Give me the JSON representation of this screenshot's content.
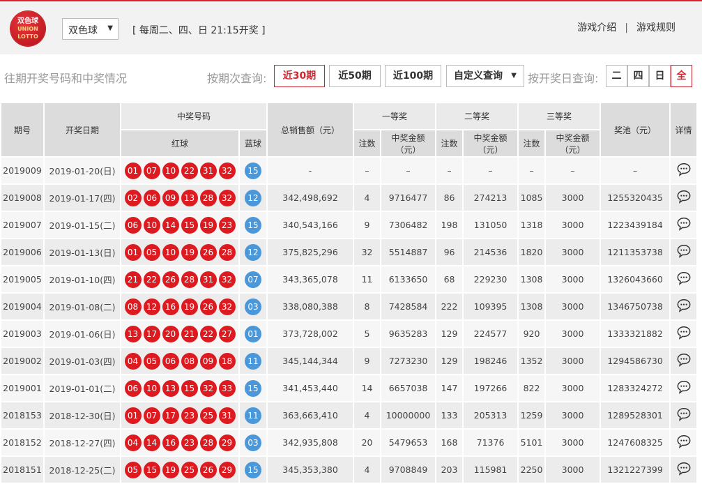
{
  "header": {
    "logo_text": [
      "双色球",
      "UNION",
      "LOTTO"
    ],
    "game_select": "双色球",
    "schedule": "[ 每周二、四、日 21:15开奖 ]",
    "links": [
      "游戏介绍",
      "游戏规则"
    ],
    "separator": "|"
  },
  "toolbar": {
    "subtitle": "往期开奖号码和中奖情况",
    "period_label": "按期次查询:",
    "period_buttons": [
      "近30期",
      "近50期",
      "近100期"
    ],
    "active_period": "近30期",
    "custom_query": "自定义查询",
    "day_label": "按开奖日查询:",
    "day_buttons": [
      "二",
      "四",
      "日",
      "全"
    ],
    "active_day": "全"
  },
  "accent_color": "#d9232e",
  "red_ball_color": "#dc1a1f",
  "blue_ball_color": "#4a98d9",
  "table": {
    "headers": {
      "issue": "期号",
      "date": "开奖日期",
      "numbers": "中奖号码",
      "red": "红球",
      "blue": "蓝球",
      "sales": "总销售额（元）",
      "first": "一等奖",
      "second": "二等奖",
      "third": "三等奖",
      "count": "注数",
      "amount": "中奖金额（元）",
      "pool": "奖池（元）",
      "detail": "详情"
    },
    "rows": [
      {
        "issue": "2019009",
        "date": "2019-01-20(日)",
        "red": [
          "01",
          "07",
          "10",
          "22",
          "31",
          "32"
        ],
        "blue": "15",
        "sales": "-",
        "c1": "–",
        "a1": "–",
        "c2": "–",
        "a2": "–",
        "c3": "–",
        "a3": "–",
        "pool": "–"
      },
      {
        "issue": "2019008",
        "date": "2019-01-17(四)",
        "red": [
          "02",
          "06",
          "09",
          "13",
          "28",
          "32"
        ],
        "blue": "12",
        "sales": "342,498,692",
        "c1": "4",
        "a1": "9716477",
        "c2": "86",
        "a2": "274213",
        "c3": "1085",
        "a3": "3000",
        "pool": "1255320435"
      },
      {
        "issue": "2019007",
        "date": "2019-01-15(二)",
        "red": [
          "06",
          "10",
          "14",
          "15",
          "19",
          "23"
        ],
        "blue": "15",
        "sales": "340,543,166",
        "c1": "9",
        "a1": "7306482",
        "c2": "198",
        "a2": "131050",
        "c3": "1318",
        "a3": "3000",
        "pool": "1223439184"
      },
      {
        "issue": "2019006",
        "date": "2019-01-13(日)",
        "red": [
          "01",
          "05",
          "10",
          "19",
          "26",
          "28"
        ],
        "blue": "12",
        "sales": "375,825,296",
        "c1": "32",
        "a1": "5514887",
        "c2": "96",
        "a2": "214536",
        "c3": "1820",
        "a3": "3000",
        "pool": "1211353738"
      },
      {
        "issue": "2019005",
        "date": "2019-01-10(四)",
        "red": [
          "21",
          "22",
          "26",
          "28",
          "31",
          "32"
        ],
        "blue": "07",
        "sales": "343,365,078",
        "c1": "11",
        "a1": "6133650",
        "c2": "68",
        "a2": "229230",
        "c3": "1308",
        "a3": "3000",
        "pool": "1326043660"
      },
      {
        "issue": "2019004",
        "date": "2019-01-08(二)",
        "red": [
          "08",
          "12",
          "16",
          "19",
          "26",
          "32"
        ],
        "blue": "03",
        "sales": "338,080,388",
        "c1": "8",
        "a1": "7428584",
        "c2": "222",
        "a2": "109395",
        "c3": "1308",
        "a3": "3000",
        "pool": "1346750738"
      },
      {
        "issue": "2019003",
        "date": "2019-01-06(日)",
        "red": [
          "13",
          "17",
          "20",
          "21",
          "22",
          "27"
        ],
        "blue": "01",
        "sales": "373,728,002",
        "c1": "5",
        "a1": "9635283",
        "c2": "129",
        "a2": "224577",
        "c3": "920",
        "a3": "3000",
        "pool": "1333321882"
      },
      {
        "issue": "2019002",
        "date": "2019-01-03(四)",
        "red": [
          "04",
          "05",
          "06",
          "08",
          "09",
          "18"
        ],
        "blue": "11",
        "sales": "345,144,344",
        "c1": "9",
        "a1": "7273230",
        "c2": "129",
        "a2": "198246",
        "c3": "1352",
        "a3": "3000",
        "pool": "1294586730"
      },
      {
        "issue": "2019001",
        "date": "2019-01-01(二)",
        "red": [
          "06",
          "10",
          "13",
          "15",
          "32",
          "33"
        ],
        "blue": "15",
        "sales": "341,453,440",
        "c1": "14",
        "a1": "6657038",
        "c2": "147",
        "a2": "197266",
        "c3": "822",
        "a3": "3000",
        "pool": "1283324272"
      },
      {
        "issue": "2018153",
        "date": "2018-12-30(日)",
        "red": [
          "01",
          "07",
          "17",
          "23",
          "25",
          "31"
        ],
        "blue": "11",
        "sales": "363,663,410",
        "c1": "4",
        "a1": "10000000",
        "c2": "133",
        "a2": "205313",
        "c3": "1259",
        "a3": "3000",
        "pool": "1289528301"
      },
      {
        "issue": "2018152",
        "date": "2018-12-27(四)",
        "red": [
          "04",
          "14",
          "16",
          "23",
          "28",
          "29"
        ],
        "blue": "03",
        "sales": "342,935,808",
        "c1": "20",
        "a1": "5479653",
        "c2": "168",
        "a2": "71376",
        "c3": "5101",
        "a3": "3000",
        "pool": "1247608325"
      },
      {
        "issue": "2018151",
        "date": "2018-12-25(二)",
        "red": [
          "05",
          "15",
          "19",
          "25",
          "26",
          "29"
        ],
        "blue": "15",
        "sales": "345,353,380",
        "c1": "4",
        "a1": "9708849",
        "c2": "203",
        "a2": "115981",
        "c3": "2250",
        "a3": "3000",
        "pool": "1321227399"
      }
    ]
  }
}
